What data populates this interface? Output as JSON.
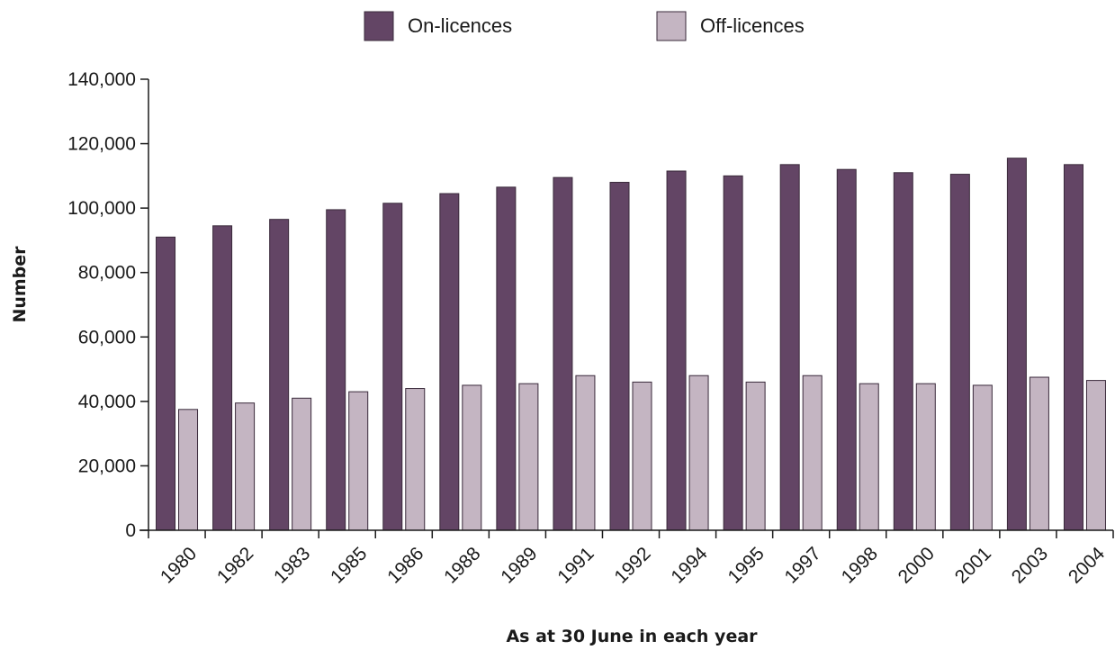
{
  "chart_data": {
    "type": "bar",
    "title": "",
    "xlabel": "As at 30 June in each year",
    "ylabel": "Number",
    "ylim": [
      0,
      140000
    ],
    "yticks": [
      0,
      20000,
      40000,
      60000,
      80000,
      100000,
      120000,
      140000
    ],
    "ytick_labels": [
      "0",
      "20,000",
      "40,000",
      "60,000",
      "80,000",
      "100,000",
      "120,000",
      "140,000"
    ],
    "grid": false,
    "legend_position": "top-center",
    "categories": [
      "1980",
      "1982",
      "1983",
      "1985",
      "1986",
      "1988",
      "1989",
      "1991",
      "1992",
      "1994",
      "1995",
      "1997",
      "1998",
      "2000",
      "2001",
      "2003",
      "2004"
    ],
    "series": [
      {
        "name": "On-licences",
        "color": "#634565",
        "values": [
          91000,
          94500,
          96500,
          99500,
          101500,
          104500,
          106500,
          109500,
          108000,
          111500,
          110000,
          113500,
          112000,
          111000,
          110500,
          115500,
          113500
        ]
      },
      {
        "name": "Off-licences",
        "color": "#c4b5c2",
        "values": [
          37500,
          39500,
          41000,
          43000,
          44000,
          45000,
          45500,
          48000,
          46000,
          48000,
          46000,
          48000,
          45500,
          45500,
          45000,
          47500,
          46500
        ]
      }
    ]
  }
}
